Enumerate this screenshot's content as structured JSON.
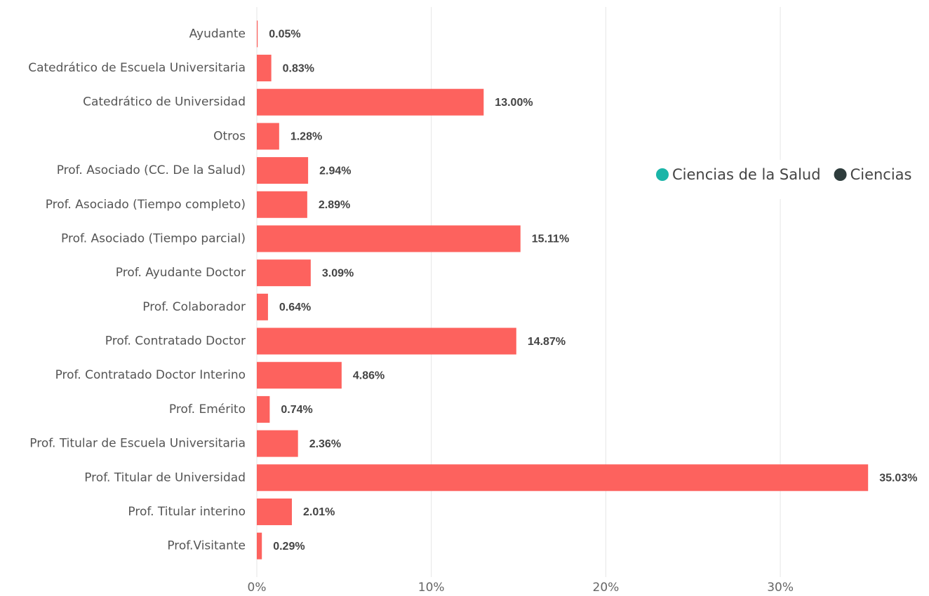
{
  "chart_data": {
    "type": "bar",
    "orientation": "horizontal",
    "categories": [
      "Ayudante",
      "Catedrático de Escuela Universitaria",
      "Catedrático de Universidad",
      "Otros",
      "Prof. Asociado (CC. De la Salud)",
      "Prof. Asociado (Tiempo completo)",
      "Prof. Asociado (Tiempo parcial)",
      "Prof. Ayudante Doctor",
      "Prof. Colaborador",
      "Prof. Contratado Doctor",
      "Prof. Contratado Doctor Interino",
      "Prof. Emérito",
      "Prof. Titular de Escuela Universitaria",
      "Prof. Titular de Universidad",
      "Prof. Titular interino",
      "Prof.Visitante"
    ],
    "values": [
      0.05,
      0.83,
      13.0,
      1.28,
      2.94,
      2.89,
      15.11,
      3.09,
      0.64,
      14.87,
      4.86,
      0.74,
      2.36,
      35.03,
      2.01,
      0.29
    ],
    "value_labels": [
      "0.05%",
      "0.83%",
      "13.00%",
      "1.28%",
      "2.94%",
      "2.89%",
      "15.11%",
      "3.09%",
      "0.64%",
      "14.87%",
      "4.86%",
      "0.74%",
      "2.36%",
      "35.03%",
      "2.01%",
      "0.29%"
    ],
    "color": "#fd625e",
    "xlim": [
      0,
      38
    ],
    "xticks": [
      {
        "value": 0,
        "label": "0%"
      },
      {
        "value": 10,
        "label": "10%"
      },
      {
        "value": 20,
        "label": "20%"
      },
      {
        "value": 30,
        "label": "30%"
      }
    ],
    "grid": true,
    "legend": [
      {
        "name": "Ciencias de la Salud",
        "color": "#1ab5a8"
      },
      {
        "name": "Ciencias",
        "color": "#2e3c3c"
      }
    ],
    "legend_position": "right"
  }
}
